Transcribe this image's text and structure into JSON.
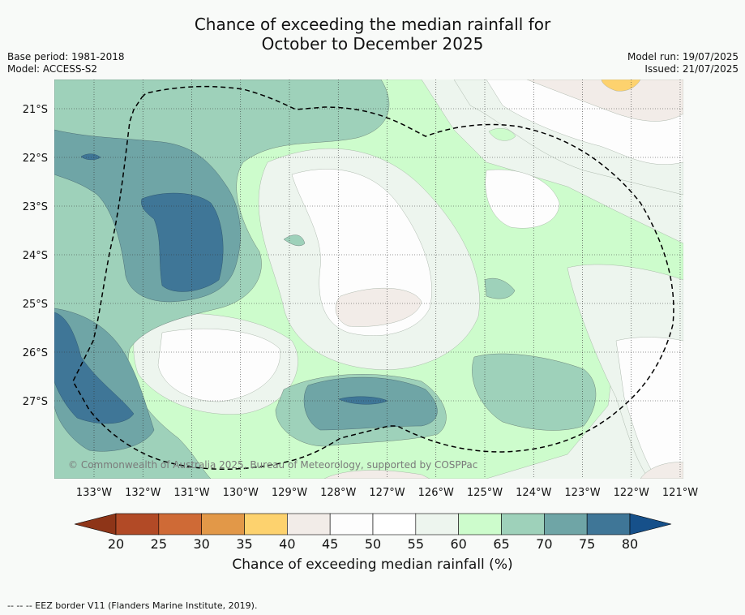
{
  "title": {
    "line1": "Chance of exceeding the median rainfall for",
    "line2": "October to December 2025"
  },
  "meta": {
    "base_period": "Base period: 1981-2018",
    "model": "Model: ACCESS-S2",
    "model_run": "Model run: 19/07/2025",
    "issued": "Issued: 21/07/2025"
  },
  "map": {
    "copyright": "© Commonwealth of Australia 2025, Bureau of Meteorology, supported by COSPPac",
    "lon_ticks": [
      "133°W",
      "132°W",
      "131°W",
      "130°W",
      "129°W",
      "128°W",
      "127°W",
      "126°W",
      "125°W",
      "124°W",
      "123°W",
      "122°W",
      "121°W"
    ],
    "lat_ticks": [
      "21°S",
      "22°S",
      "23°S",
      "24°S",
      "25°S",
      "26°S",
      "27°S"
    ],
    "lon_range": [
      -133.8,
      -120.9
    ],
    "lat_range": [
      -28.6,
      -20.6
    ],
    "grid": true
  },
  "colorbar": {
    "ticks": [
      "20",
      "25",
      "30",
      "35",
      "40",
      "45",
      "50",
      "55",
      "60",
      "65",
      "70",
      "75",
      "80"
    ],
    "colors": [
      "#b24a26",
      "#cf6a36",
      "#e29848",
      "#fdd26e",
      "#f2ece8",
      "#fdfdfd",
      "#ffffff",
      "#edf5ee",
      "#cdfccc",
      "#9ed1ba",
      "#6fa5a6",
      "#3f7697"
    ],
    "under_color": "#8e3518",
    "over_color": "#16508a",
    "label": "Chance of exceeding median rainfall (%)"
  },
  "footer": "--  --  -- EEZ border V11 (Flanders Marine Institute, 2019)."
}
